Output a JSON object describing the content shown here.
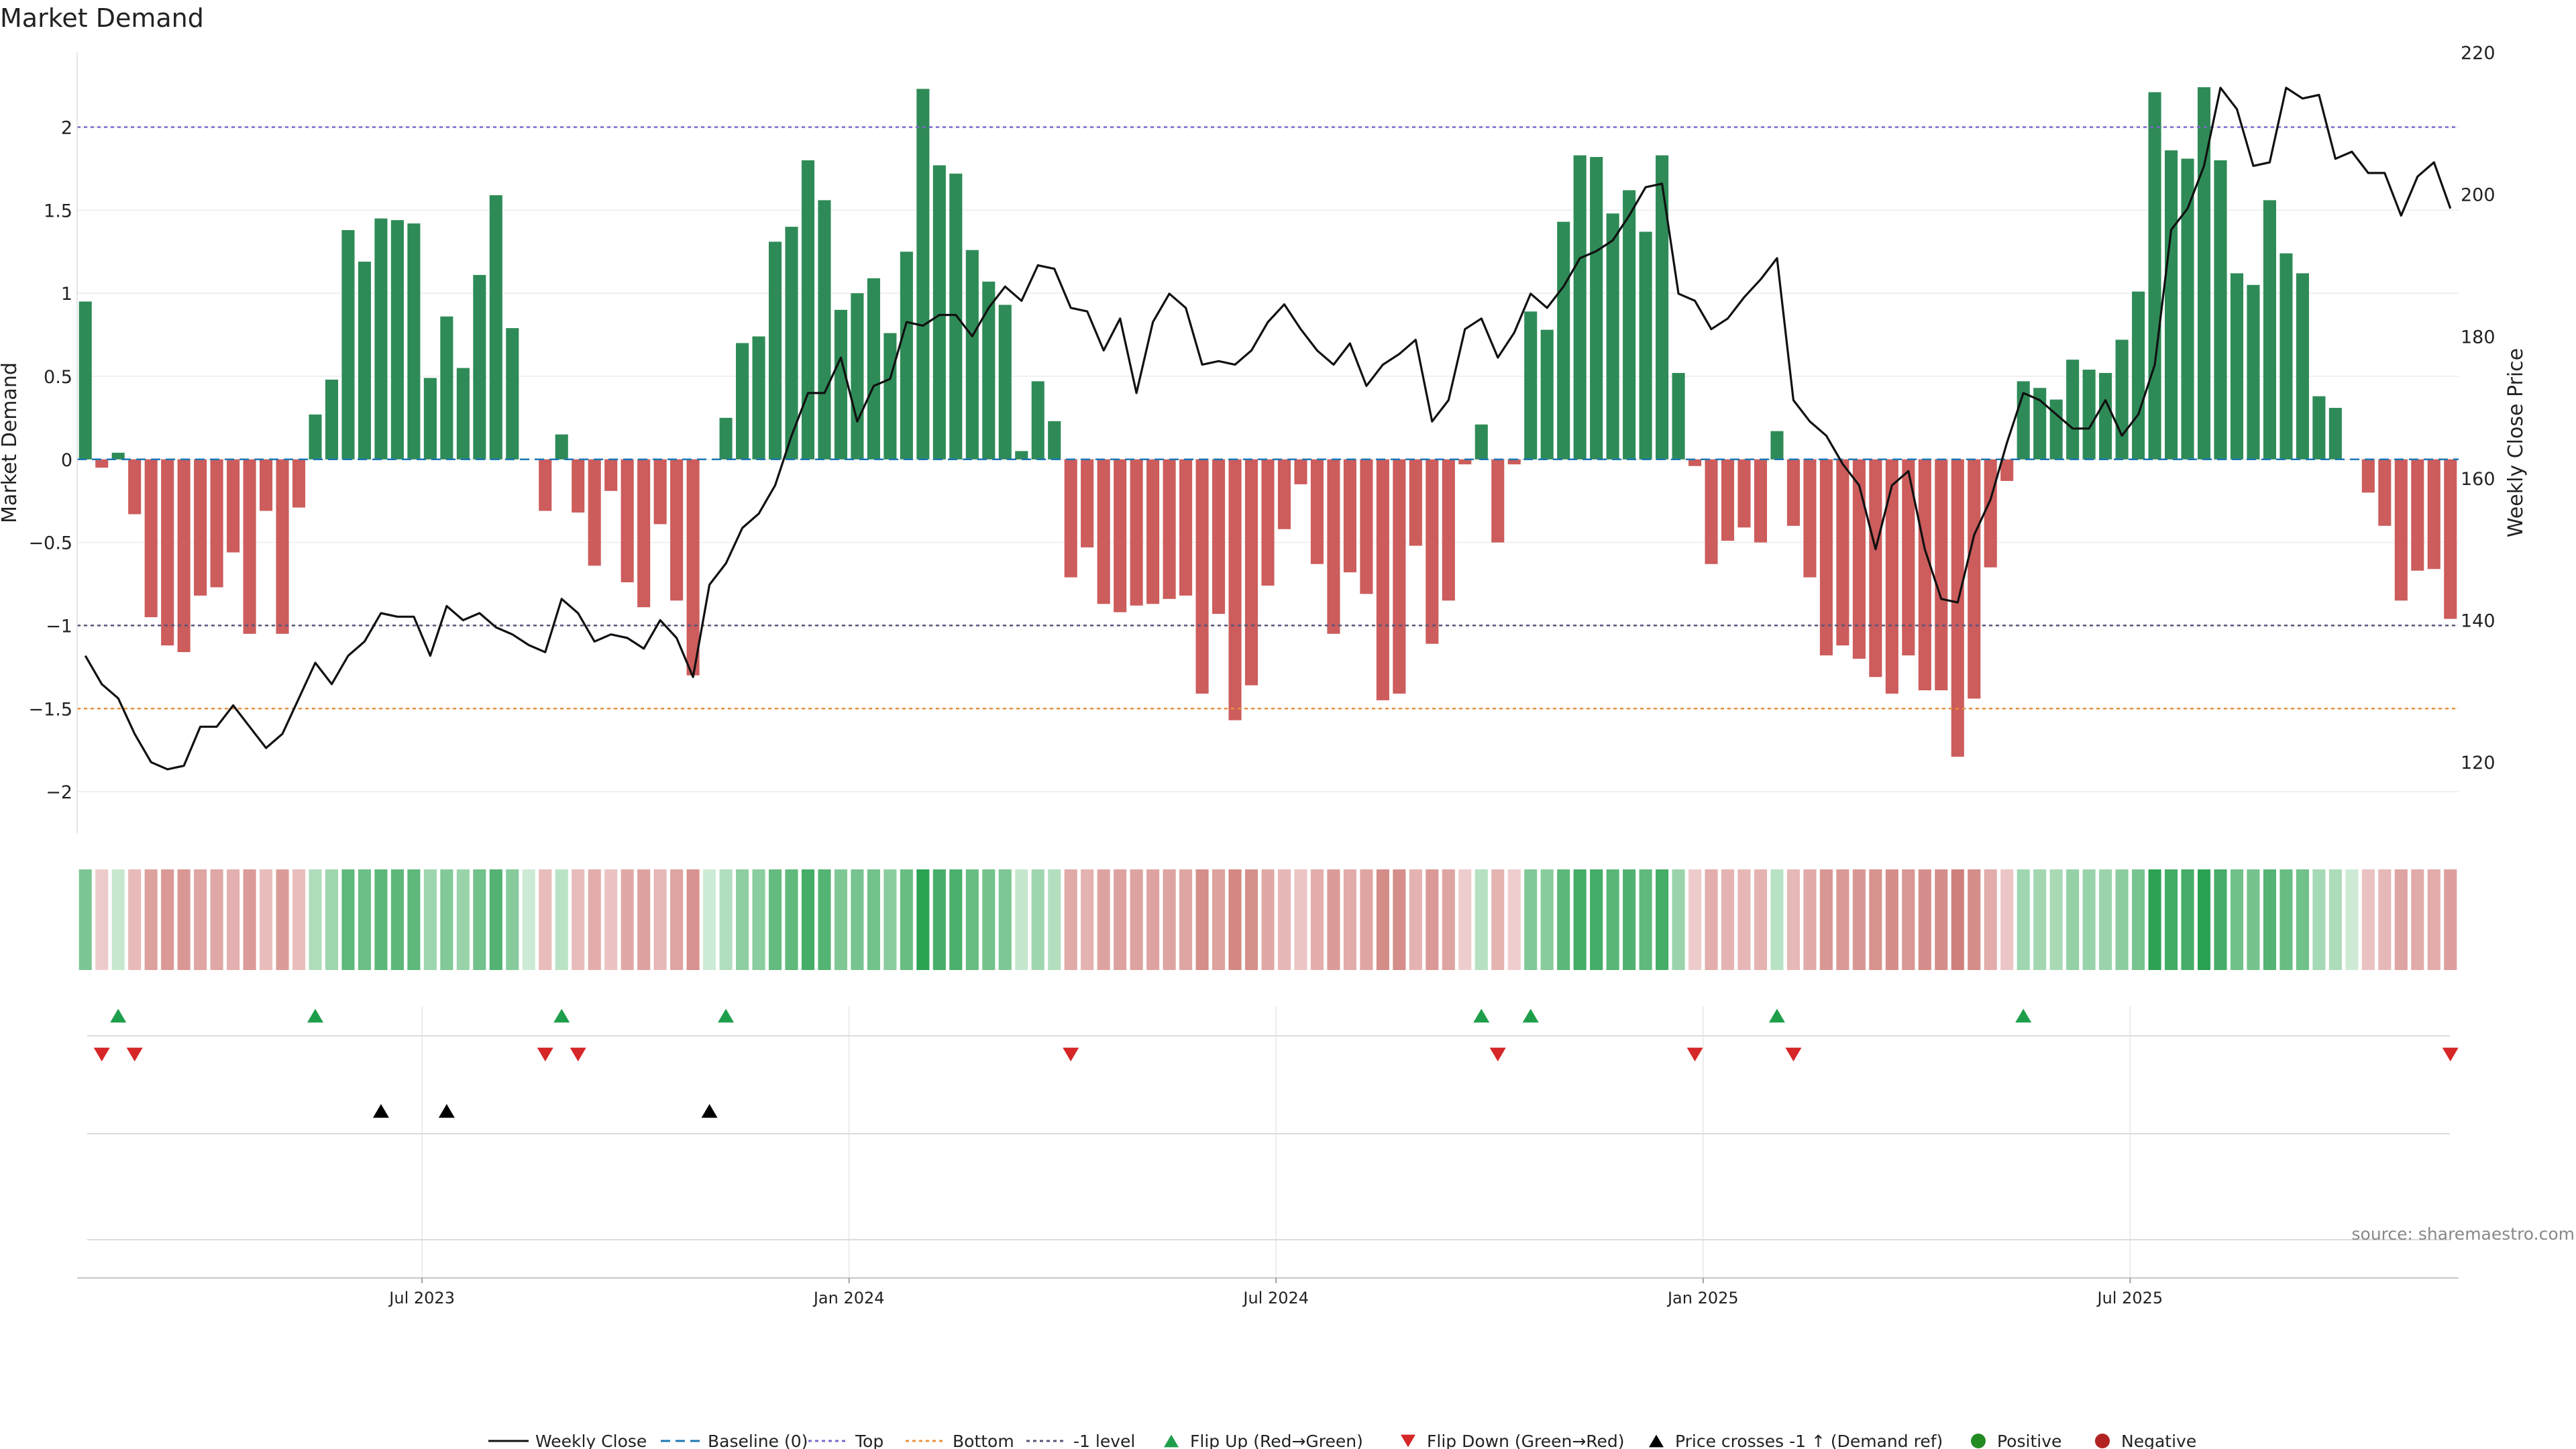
{
  "chart_data": {
    "type": "bar",
    "title": "Market Demand",
    "ylabel": "Market Demand",
    "y2label": "Weekly Close Price",
    "ylim": [
      -2.25,
      2.45
    ],
    "y2lim": [
      110,
      220
    ],
    "yticks": [
      -2,
      -1.5,
      -1,
      -0.5,
      0,
      0.5,
      1,
      1.5,
      2
    ],
    "ytick_labels": [
      "−2",
      "−1.5",
      "−1",
      "−0.5",
      "0",
      "0.5",
      "1",
      "1.5",
      "2"
    ],
    "y2ticks": [
      120,
      140,
      160,
      180,
      200,
      220
    ],
    "date_ticks": [
      {
        "label": "Jul 2023",
        "week": 21
      },
      {
        "label": "Jan 2024",
        "week": 47
      },
      {
        "label": "Jul 2024",
        "week": 73
      },
      {
        "label": "Jan 2025",
        "week": 99
      },
      {
        "label": "Jul 2025",
        "week": 125
      }
    ],
    "reference_lines": {
      "top": 2,
      "bottom": -1.5,
      "minus_one_level": -1,
      "baseline": 0
    },
    "demand": [
      0.95,
      -0.05,
      0.04,
      -0.33,
      -0.95,
      -1.12,
      -1.16,
      -0.82,
      -0.77,
      -0.56,
      -1.05,
      -0.31,
      -1.05,
      -0.29,
      0.27,
      0.48,
      1.38,
      1.19,
      1.45,
      1.44,
      1.42,
      0.49,
      0.86,
      0.55,
      1.11,
      1.59,
      0.79,
      0.0,
      -0.31,
      0.15,
      -0.32,
      -0.64,
      -0.19,
      -0.74,
      -0.89,
      -0.39,
      -0.85,
      -1.3,
      0.0,
      0.25,
      0.7,
      0.74,
      1.31,
      1.4,
      1.8,
      1.56,
      0.9,
      1.0,
      1.09,
      0.76,
      1.25,
      2.23,
      1.77,
      1.72,
      1.26,
      1.07,
      0.93,
      0.05,
      0.47,
      0.23,
      -0.71,
      -0.53,
      -0.87,
      -0.92,
      -0.88,
      -0.87,
      -0.84,
      -0.82,
      -1.41,
      -0.93,
      -1.57,
      -1.36,
      -0.76,
      -0.42,
      -0.15,
      -0.63,
      -1.05,
      -0.68,
      -0.81,
      -1.45,
      -1.41,
      -0.52,
      -1.11,
      -0.85,
      -0.03,
      0.21,
      -0.5,
      -0.03,
      0.89,
      0.78,
      1.43,
      1.83,
      1.82,
      1.48,
      1.62,
      1.37,
      1.83,
      0.52,
      -0.04,
      -0.63,
      -0.49,
      -0.41,
      -0.5,
      0.17,
      -0.4,
      -0.71,
      -1.18,
      -1.12,
      -1.2,
      -1.31,
      -1.41,
      -1.18,
      -1.39,
      -1.39,
      -1.79,
      -1.44,
      -0.65,
      -0.13,
      0.47,
      0.43,
      0.36,
      0.6,
      0.54,
      0.52,
      0.72,
      1.01,
      2.21,
      1.86,
      1.81,
      2.24,
      1.8,
      1.12,
      1.05,
      1.56,
      1.24,
      1.12,
      0.38,
      0.31,
      0.0,
      -0.2,
      -0.4,
      -0.85,
      -0.67,
      -0.66,
      -0.96
    ],
    "weekly_close": [
      135,
      131,
      129,
      124,
      120,
      119,
      119.5,
      125,
      125,
      128,
      125,
      122,
      124,
      129,
      134,
      131,
      135,
      137,
      141,
      140.5,
      140.5,
      135,
      142,
      140,
      141,
      139,
      138,
      136.5,
      135.5,
      143,
      141,
      137,
      138,
      137.5,
      136,
      140,
      137.5,
      132,
      145,
      148,
      153,
      155,
      159,
      166,
      172,
      172,
      177,
      168,
      173,
      174,
      182,
      181.5,
      183,
      183,
      180,
      184,
      187,
      185,
      190,
      189.5,
      184,
      183.5,
      178,
      182.5,
      172,
      182,
      186,
      184,
      176,
      176.5,
      176,
      178,
      182,
      184.5,
      181,
      178,
      176,
      179,
      173,
      176,
      177.5,
      179.5,
      168,
      171,
      181,
      182.5,
      177,
      180.5,
      186,
      184,
      187,
      191,
      192,
      193.5,
      197,
      201,
      201.5,
      186,
      185,
      181,
      182.5,
      185.5,
      188,
      191,
      171,
      168,
      166,
      162,
      159,
      150,
      159,
      161,
      150,
      143,
      142.5,
      152,
      157,
      165,
      172,
      171,
      169,
      167,
      167,
      171,
      166,
      169,
      176,
      195,
      198,
      204,
      215,
      212,
      204,
      204.5,
      215,
      213.5,
      214,
      205,
      206,
      203,
      203,
      197,
      202.5,
      204.5,
      198
    ],
    "flip_up_weeks": [
      2,
      14,
      29,
      39,
      85,
      88,
      103,
      118
    ],
    "flip_down_weeks": [
      1,
      3,
      28,
      30,
      60,
      86,
      98,
      104,
      144
    ],
    "price_cross_weeks": [
      18,
      22,
      38
    ],
    "legend": [
      "Weekly Close",
      "Baseline (0)",
      "Top",
      "Bottom",
      "-1 level",
      "Flip Up (Red→Green)",
      "Flip Down (Green→Red)",
      "Price crosses -1 ↑ (Demand ref)",
      "Positive",
      "Negative"
    ],
    "source": "source: sharemaestro.com",
    "colors": {
      "positive": "#2e8b57",
      "negative": "#cd5c5c",
      "close": "#111111",
      "baseline": "#1f77b4",
      "top": "#7b68c8",
      "bottom": "#e8923a",
      "minus_one": "#555577",
      "flip_up": "#1e9e4a",
      "flip_down": "#d62728",
      "cross": "#000000",
      "legend_positive": "#228b22",
      "legend_negative": "#b22222"
    }
  }
}
